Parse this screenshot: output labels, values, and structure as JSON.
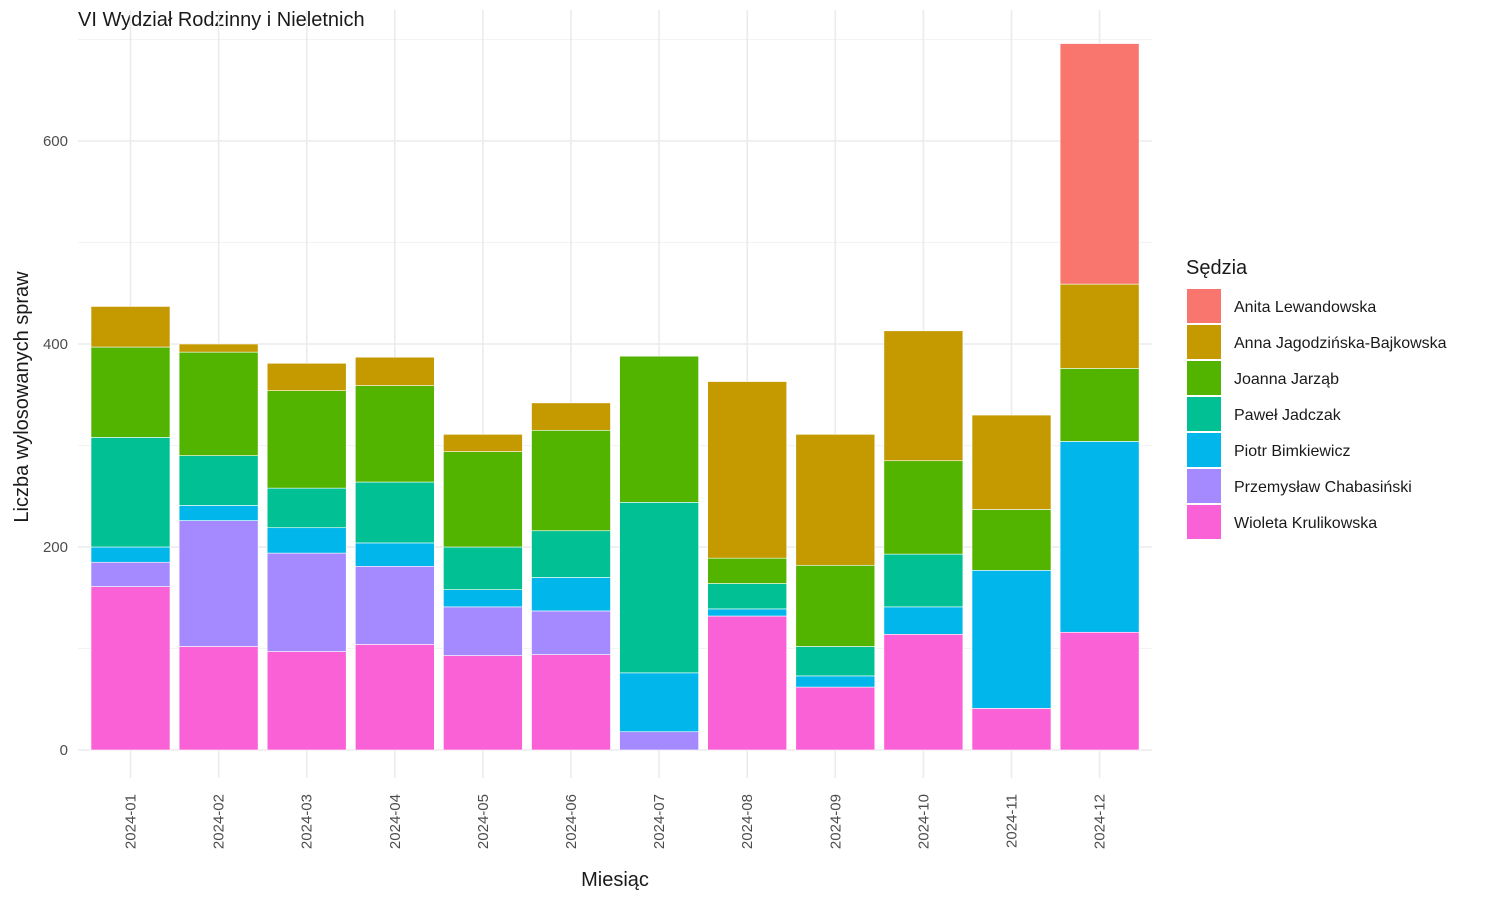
{
  "chart_data": {
    "type": "bar",
    "stacked": true,
    "title": "VI Wydział Rodzinny i Nieletnich",
    "xlabel": "Miesiąc",
    "ylabel": "Liczba wylosowanych spraw",
    "ylim": [
      -28,
      720
    ],
    "yticks": [
      0,
      200,
      400,
      600
    ],
    "grid": true,
    "legend": {
      "title": "Sędzia",
      "position": "right"
    },
    "categories": [
      "2024-01",
      "2024-02",
      "2024-03",
      "2024-04",
      "2024-05",
      "2024-06",
      "2024-07",
      "2024-08",
      "2024-09",
      "2024-10",
      "2024-11",
      "2024-12"
    ],
    "series": [
      {
        "name": "Wioleta Krulikowska",
        "color": "#FB61D7",
        "values": [
          161,
          102,
          97,
          104,
          93,
          94,
          0,
          132,
          62,
          114,
          41,
          116
        ]
      },
      {
        "name": "Przemysław Chabasiński",
        "color": "#A58AFF",
        "values": [
          24,
          124,
          97,
          77,
          48,
          43,
          18,
          0,
          0,
          0,
          0,
          0
        ]
      },
      {
        "name": "Piotr Bimkiewicz",
        "color": "#00B6EB",
        "values": [
          15,
          15,
          25,
          23,
          17,
          33,
          58,
          7,
          11,
          27,
          136,
          188
        ]
      },
      {
        "name": "Paweł Jadczak",
        "color": "#00C094",
        "values": [
          108,
          49,
          39,
          60,
          42,
          46,
          168,
          25,
          29,
          52,
          0,
          0
        ]
      },
      {
        "name": "Joanna Jarząb",
        "color": "#53B400",
        "values": [
          89,
          102,
          96,
          95,
          94,
          99,
          144,
          25,
          80,
          92,
          60,
          72
        ]
      },
      {
        "name": "Anna Jagodzińska-Bajkowska",
        "color": "#C49A00",
        "values": [
          40,
          8,
          27,
          28,
          17,
          27,
          0,
          174,
          129,
          128,
          93,
          83
        ]
      },
      {
        "name": "Anita Lewandowska",
        "color": "#F8766D",
        "values": [
          0,
          0,
          0,
          0,
          0,
          0,
          0,
          0,
          0,
          0,
          0,
          237
        ]
      }
    ],
    "legend_order": [
      "Anita Lewandowska",
      "Anna Jagodzińska-Bajkowska",
      "Joanna Jarząb",
      "Paweł Jadczak",
      "Piotr Bimkiewicz",
      "Przemysław Chabasiński",
      "Wioleta Krulikowska"
    ]
  }
}
